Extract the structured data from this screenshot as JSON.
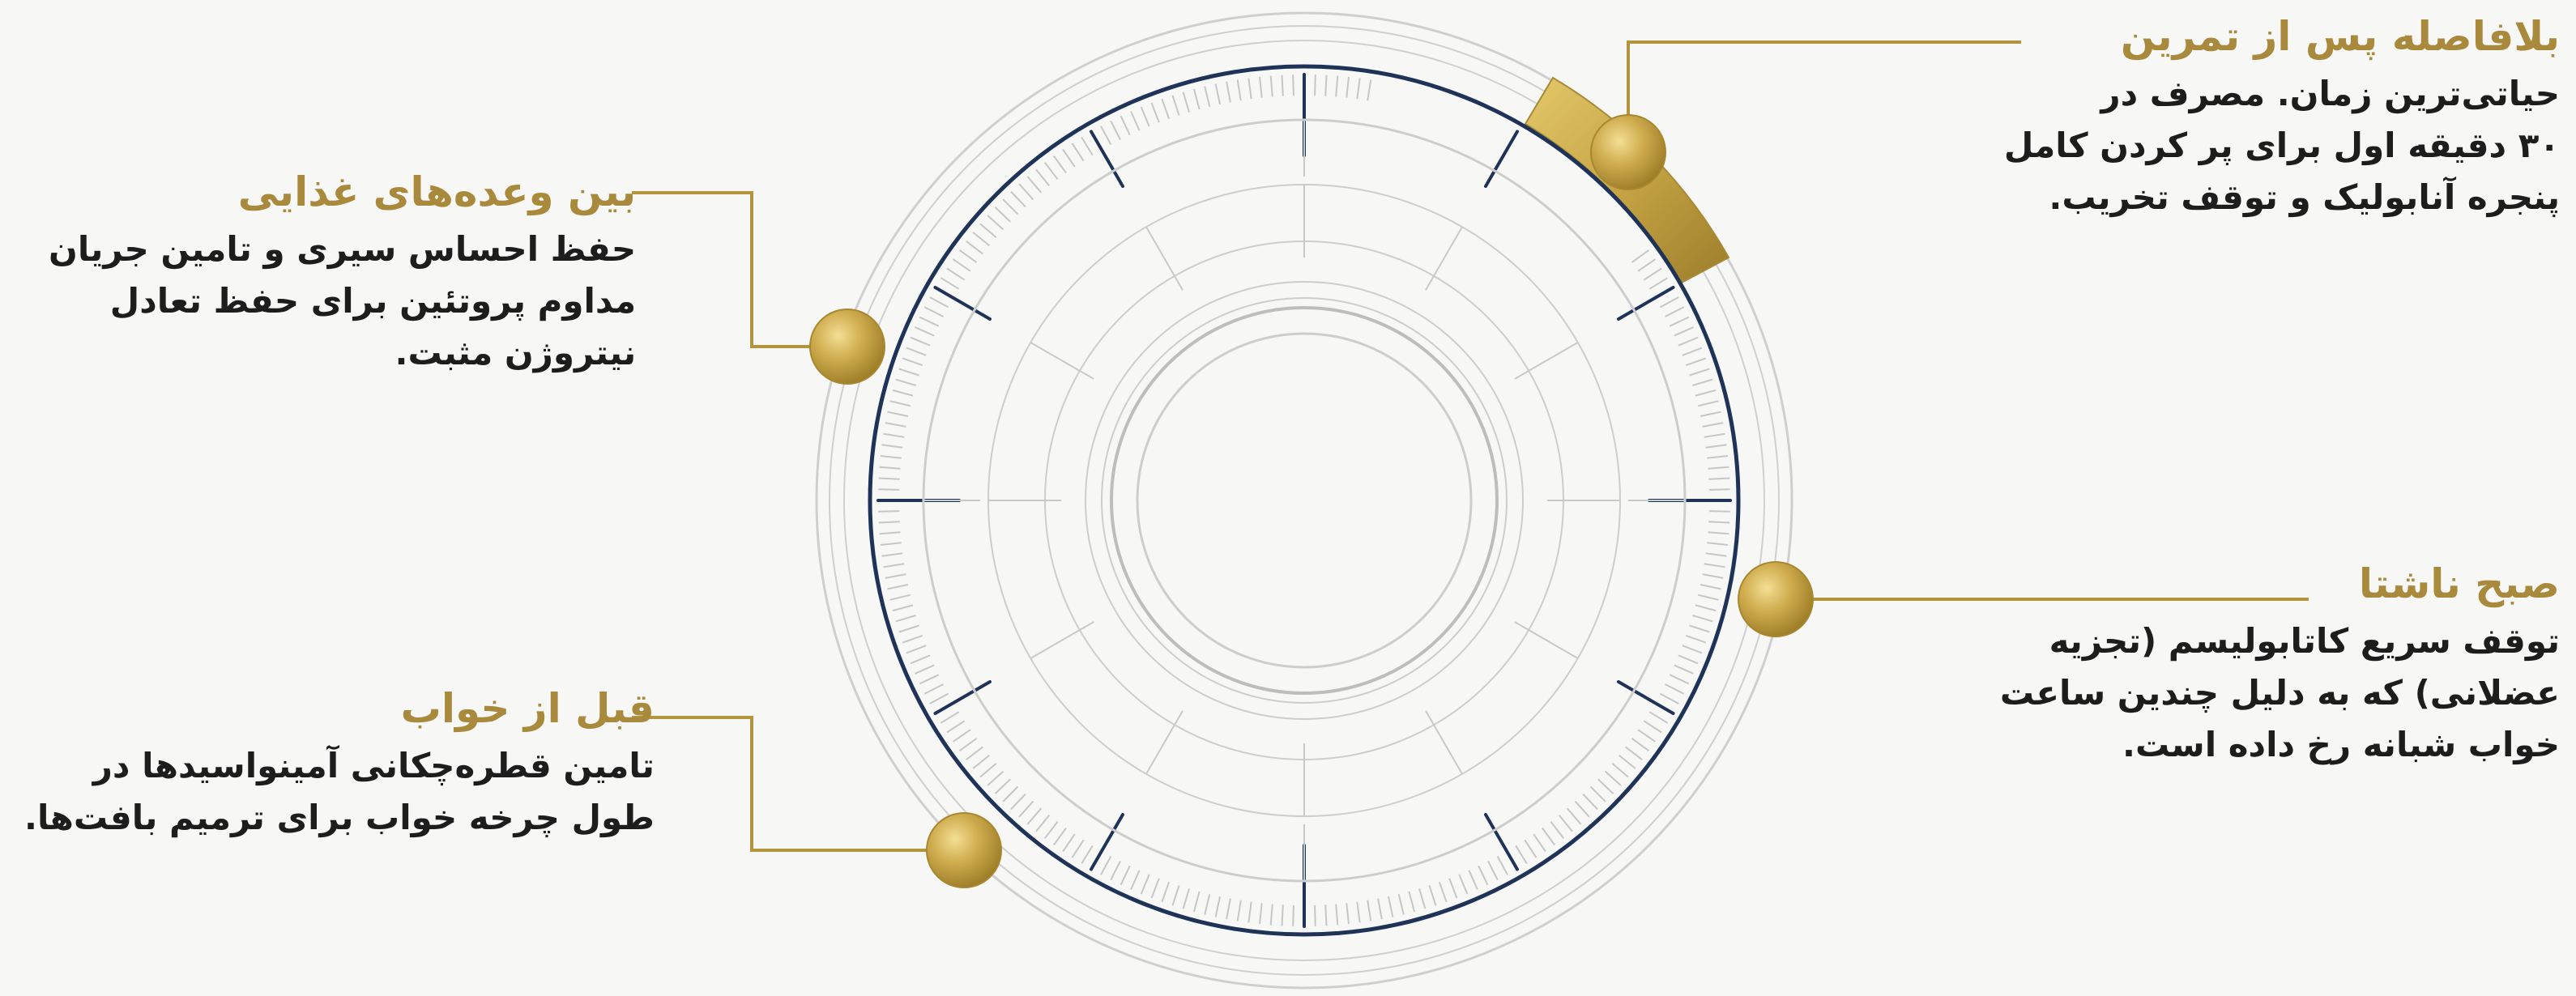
{
  "colors": {
    "gold": "#b4953f",
    "gold_light": "#e7cf7a",
    "gold_dark": "#8c6d1f",
    "navy": "#1f3358",
    "ring_gray": "#c4c4c4",
    "text_dark": "#1d1d1d",
    "background": "#f7f7f6"
  },
  "callouts": {
    "post_workout": {
      "title": "بلافاصله پس از تمرین",
      "line1": "حیاتی‌ترین زمان. مصرف در",
      "line2": "۳۰ دقیقه اول برای پر کردن کامل",
      "line3": "پنجره آنابولیک و توقف تخریب."
    },
    "breakfast": {
      "title": "صبح ناشتا",
      "line1": "توقف سریع کاتابولیسم (تجزیه",
      "line2": "عضلانی) که به دلیل چندین ساعت",
      "line3": "خواب شبانه رخ داده است."
    },
    "between_meals": {
      "title": "بین وعده‌های غذایی",
      "line1": "حفظ احساس سیری و تامین جریان",
      "line2": "مداوم پروتئین برای حفظ تعادل",
      "line3": "نیتروژن مثبت."
    },
    "before_sleep": {
      "title": "قبل از خواب",
      "line1": "تامین قطره‌چکانی آمینواسیدها در",
      "line2": "طول چرخه خواب برای ترمیم بافت‌ها."
    }
  }
}
